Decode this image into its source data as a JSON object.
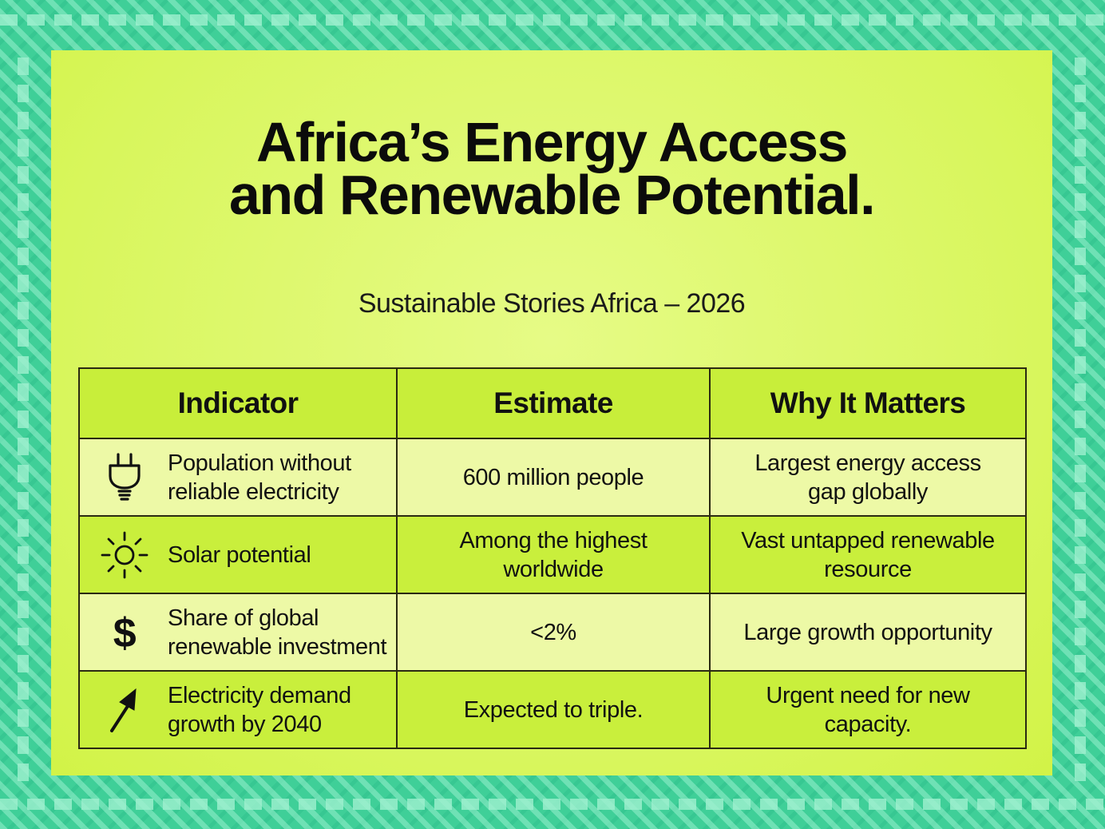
{
  "title_lines": [
    "Africa’s Energy Access",
    "and Renewable Potential."
  ],
  "subtitle": "Sustainable Stories Africa – 2026",
  "table": {
    "headers": [
      "Indicator",
      "Estimate",
      "Why It Matters"
    ],
    "rows": [
      {
        "icon": "plug-icon",
        "indicator_lines": [
          "Population without",
          "reliable electricity"
        ],
        "estimate_lines": [
          "600 million people"
        ],
        "why_lines": [
          "Largest energy access",
          "gap globally"
        ]
      },
      {
        "icon": "sun-icon",
        "indicator_lines": [
          "Solar potential"
        ],
        "estimate_lines": [
          "Among the highest",
          "worldwide"
        ],
        "why_lines": [
          "Vast untapped renewable",
          "resource"
        ]
      },
      {
        "icon": "dollar-icon",
        "indicator_lines": [
          "Share of global",
          "renewable investment"
        ],
        "estimate_lines": [
          "<2%"
        ],
        "why_lines": [
          "Large growth opportunity"
        ]
      },
      {
        "icon": "arrow-up-right-icon",
        "indicator_lines": [
          "Electricity demand",
          "growth by 2040"
        ],
        "estimate_lines": [
          "Expected to triple."
        ],
        "why_lines": [
          "Urgent need for new",
          "capacity."
        ]
      }
    ]
  },
  "colors": {
    "frame": "#3fcf98",
    "poster": "#dcf761",
    "header_row": "#c8ee3a",
    "row_light": "#edf9a6",
    "row_dark": "#c9ef3c",
    "text": "#0b0b0b"
  }
}
